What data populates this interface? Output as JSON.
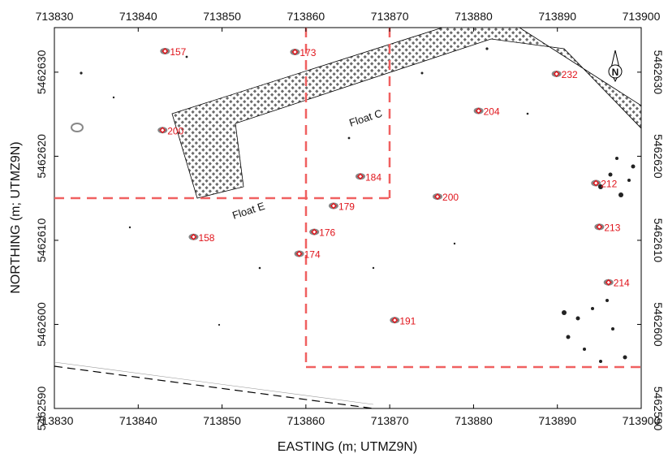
{
  "map": {
    "x_axis_label": "EASTING (m; UTMZ9N)",
    "y_axis_label": "NORTHING (m; UTMZ9N)",
    "x_ticks": [
      "713830",
      "713840",
      "713850",
      "713860",
      "713870",
      "713880",
      "713890",
      "713900"
    ],
    "y_ticks": [
      "5462590",
      "5462600",
      "5462610",
      "5462620",
      "5462630"
    ],
    "north_arrow_label": "N",
    "float_labels": [
      "Float C",
      "Float E"
    ],
    "colors": {
      "target_marker": "#e0141b",
      "grid_dashed": "#f06060",
      "hatch_fill": "#6a6a6a",
      "boundary_line": "#000000"
    },
    "targets": [
      {
        "id": "157",
        "easting": 713843.2,
        "northing": 5462632.5
      },
      {
        "id": "173",
        "easting": 713858.7,
        "northing": 5462632.4
      },
      {
        "id": "232",
        "easting": 713889.9,
        "northing": 5462629.8
      },
      {
        "id": "204",
        "easting": 713880.6,
        "northing": 5462625.4
      },
      {
        "id": "200",
        "easting": 713842.9,
        "northing": 5462623.1
      },
      {
        "id": "184",
        "easting": 713866.5,
        "northing": 5462617.6
      },
      {
        "id": "212",
        "easting": 713894.6,
        "northing": 5462616.8
      },
      {
        "id": "200",
        "easting": 713875.7,
        "northing": 5462615.2
      },
      {
        "id": "179",
        "easting": 713863.3,
        "northing": 5462614.1
      },
      {
        "id": "213",
        "easting": 713895.0,
        "northing": 5462611.6
      },
      {
        "id": "176",
        "easting": 713861.0,
        "northing": 5462611.0
      },
      {
        "id": "158",
        "easting": 713846.6,
        "northing": 5462610.4
      },
      {
        "id": "174",
        "easting": 713859.2,
        "northing": 5462608.4
      },
      {
        "id": "214",
        "easting": 713896.1,
        "northing": 5462605.0
      },
      {
        "id": "191",
        "easting": 713870.6,
        "northing": 5462600.5
      }
    ]
  }
}
